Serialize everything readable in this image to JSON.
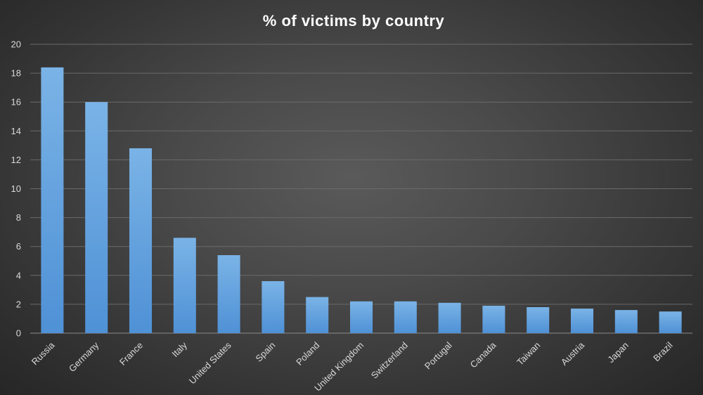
{
  "chart_data": {
    "type": "bar",
    "title": "% of victims  by country",
    "xlabel": "",
    "ylabel": "",
    "ylim": [
      0,
      20
    ],
    "yticks": [
      0,
      2,
      4,
      6,
      8,
      10,
      12,
      14,
      16,
      18,
      20
    ],
    "grid": true,
    "legend": "none",
    "bar_color": "#5b9bd5",
    "categories": [
      "Russia",
      "Germany",
      "France",
      "Italy",
      "United States",
      "Spain",
      "Poland",
      "United Kingdom",
      "Switzerland",
      "Portugal",
      "Canada",
      "Taiwan",
      "Austria",
      "Japan",
      "Brazil"
    ],
    "values": [
      18.4,
      16.0,
      12.8,
      6.6,
      5.4,
      3.6,
      2.5,
      2.2,
      2.2,
      2.1,
      1.9,
      1.8,
      1.7,
      1.6,
      1.5
    ]
  }
}
